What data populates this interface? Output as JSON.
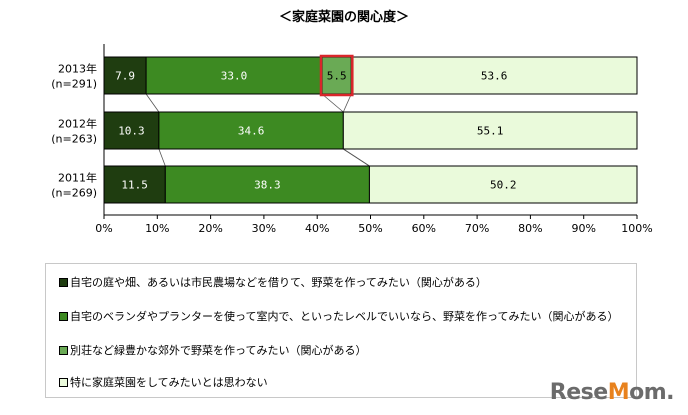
{
  "chart_data": {
    "type": "bar",
    "orientation": "horizontal",
    "stacked": true,
    "title": "＜家庭菜園の関心度＞",
    "categories": [
      {
        "year": "2013年",
        "n": "(n=291)"
      },
      {
        "year": "2012年",
        "n": "(n=263)"
      },
      {
        "year": "2011年",
        "n": "(n=269)"
      }
    ],
    "series": [
      {
        "name": "自宅の庭や畑、あるいは市民農場などを借りて、野菜を作ってみたい（関心がある）",
        "color": "#1f3d10",
        "label_color": "#ffffff",
        "values": [
          7.9,
          10.3,
          11.5
        ],
        "labels": [
          "7.9",
          "10.3",
          "11.5"
        ]
      },
      {
        "name": "自宅のベランダやプランターを使って室内で、といったレベルでいいなら、野菜を作ってみたい（関心がある）",
        "color": "#3d8a22",
        "label_color": "#ffffff",
        "values": [
          33.0,
          34.6,
          38.3
        ],
        "labels": [
          "33.0",
          "34.6",
          "38.3"
        ]
      },
      {
        "name": "別荘など緑豊かな郊外で野菜を作ってみたい（関心がある）",
        "color": "#6aaa55",
        "label_color": "#000000",
        "values": [
          5.5,
          0,
          0
        ],
        "labels": [
          "5.5",
          "",
          ""
        ]
      },
      {
        "name": "特に家庭菜園をしてみたいとは思わない",
        "color": "#eafadb",
        "label_color": "#000000",
        "values": [
          53.6,
          55.1,
          50.2
        ],
        "labels": [
          "53.6",
          "55.1",
          "50.2"
        ]
      }
    ],
    "xlim": [
      0,
      100
    ],
    "xticks": [
      "0%",
      "10%",
      "20%",
      "30%",
      "40%",
      "50%",
      "60%",
      "70%",
      "80%",
      "90%",
      "100%"
    ],
    "highlight": {
      "category_index": 0,
      "series_index": 2,
      "color": "#d9262b"
    },
    "grid": false,
    "legend_position": "bottom"
  },
  "watermark": {
    "text_before": "Rese",
    "text_o": "M",
    "text_after": "om."
  }
}
